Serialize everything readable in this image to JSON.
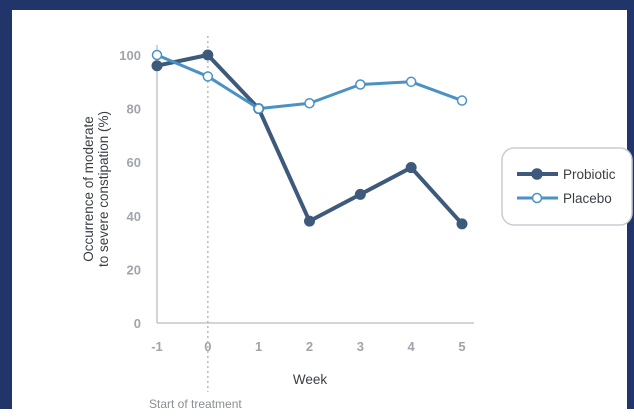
{
  "chart_data": {
    "type": "line",
    "x": [
      -1,
      0,
      1,
      2,
      3,
      4,
      5
    ],
    "xlabel": "Week",
    "ylabel": [
      "Occurrence of moderate",
      "to severe constipation (%)"
    ],
    "yticks": [
      0,
      20,
      40,
      60,
      80,
      100
    ],
    "ylim": [
      0,
      100
    ],
    "xlim": [
      -1,
      5
    ],
    "grid": false,
    "legend_position": "right",
    "annotation": "Start of treatment",
    "series": [
      {
        "name": "Probiotic",
        "values": [
          96,
          100,
          80,
          38,
          48,
          58,
          37
        ],
        "color": "#3d5a7d",
        "marker": "filled"
      },
      {
        "name": "Placebo",
        "values": [
          100,
          92,
          80,
          82,
          89,
          90,
          83
        ],
        "color": "#4b92c4",
        "marker": "hollow"
      }
    ],
    "colors": {
      "axis": "#c2c7cc",
      "frame": "#22356b",
      "tick": "#a0a5ab",
      "vline": "#b8b8b8"
    }
  }
}
